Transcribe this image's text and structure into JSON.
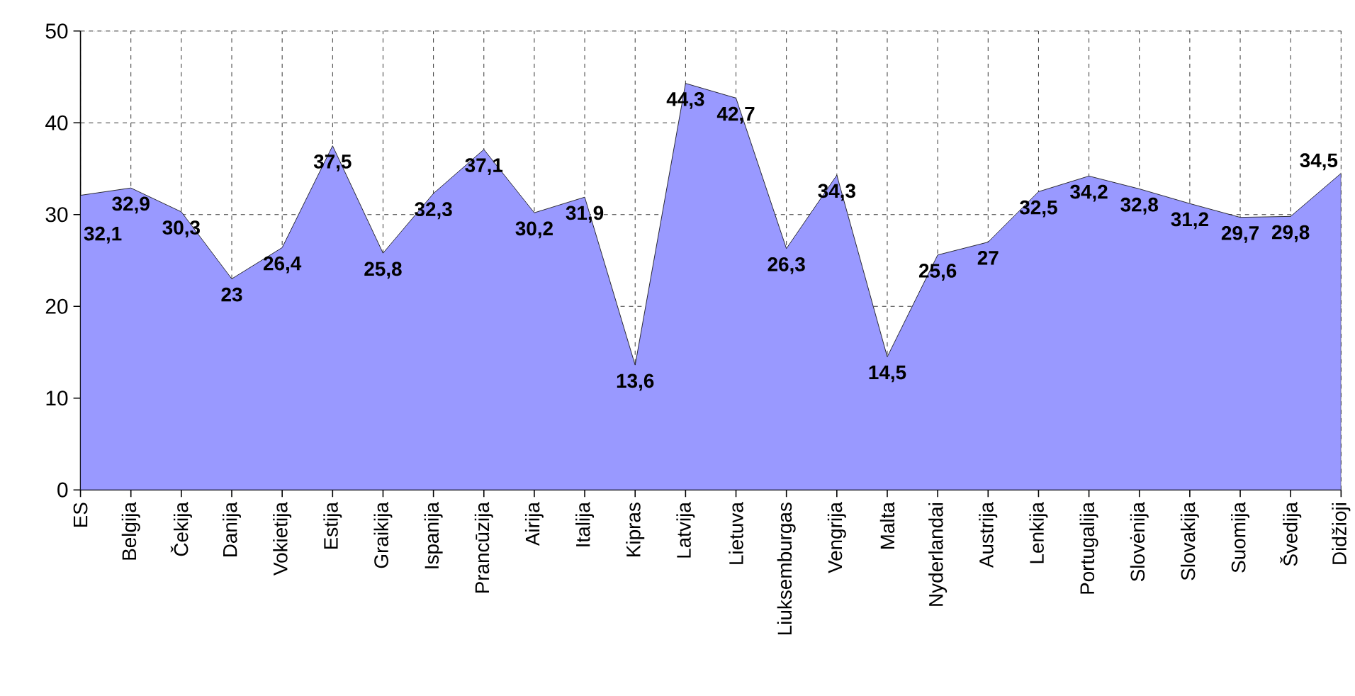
{
  "chart_data": {
    "type": "area",
    "categories": [
      "ES",
      "Belgija",
      "Čekija",
      "Danija",
      "Vokietija",
      "Estija",
      "Graikija",
      "Ispanija",
      "Prancūzija",
      "Airija",
      "Italija",
      "Kipras",
      "Latvija",
      "Lietuva",
      "Liuksemburgas",
      "Vengrija",
      "Malta",
      "Nyderlandai",
      "Austrija",
      "Lenkija",
      "Portugalija",
      "Slovėnija",
      "Slovakija",
      "Suomija",
      "Švedija",
      "Didžioji"
    ],
    "values": [
      32.1,
      32.9,
      30.3,
      23,
      26.4,
      37.5,
      25.8,
      32.3,
      37.1,
      30.2,
      31.9,
      13.6,
      44.3,
      42.7,
      26.3,
      34.3,
      14.5,
      25.6,
      27,
      32.5,
      34.2,
      32.8,
      31.2,
      29.7,
      29.8,
      34.5
    ],
    "value_labels": [
      "32,1",
      "32,9",
      "30,3",
      "23",
      "26,4",
      "37,5",
      "25,8",
      "32,3",
      "37,1",
      "30,2",
      "31,9",
      "13,6",
      "44,3",
      "42,7",
      "26,3",
      "34,3",
      "14,5",
      "25,6",
      "27",
      "32,5",
      "34,2",
      "32,8",
      "31,2",
      "29,7",
      "29,8",
      "34,5"
    ],
    "color": "#9999ff",
    "ylim": [
      0,
      50
    ],
    "yticks": [
      0,
      10,
      20,
      30,
      40,
      50
    ],
    "grid": true
  }
}
